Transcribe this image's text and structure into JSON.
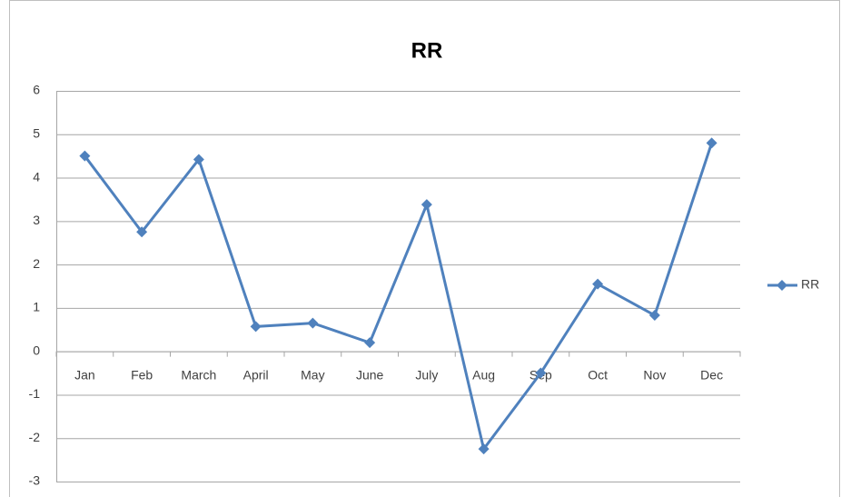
{
  "chart_data": {
    "type": "line",
    "title": "RR",
    "categories": [
      "Jan",
      "Feb",
      "March",
      "April",
      "May",
      "June",
      "July",
      "Aug",
      "Sep",
      "Oct",
      "Nov",
      "Dec"
    ],
    "series": [
      {
        "name": "RR",
        "color": "#4f81bd",
        "values": [
          4.5,
          2.75,
          4.42,
          0.57,
          0.65,
          0.2,
          3.38,
          -2.25,
          -0.5,
          1.55,
          0.83,
          4.8
        ]
      }
    ],
    "ylim": [
      -3,
      6
    ],
    "yticks": [
      -3,
      -2,
      -1,
      0,
      1,
      2,
      3,
      4,
      5,
      6
    ],
    "grid": true,
    "legend": "right"
  }
}
